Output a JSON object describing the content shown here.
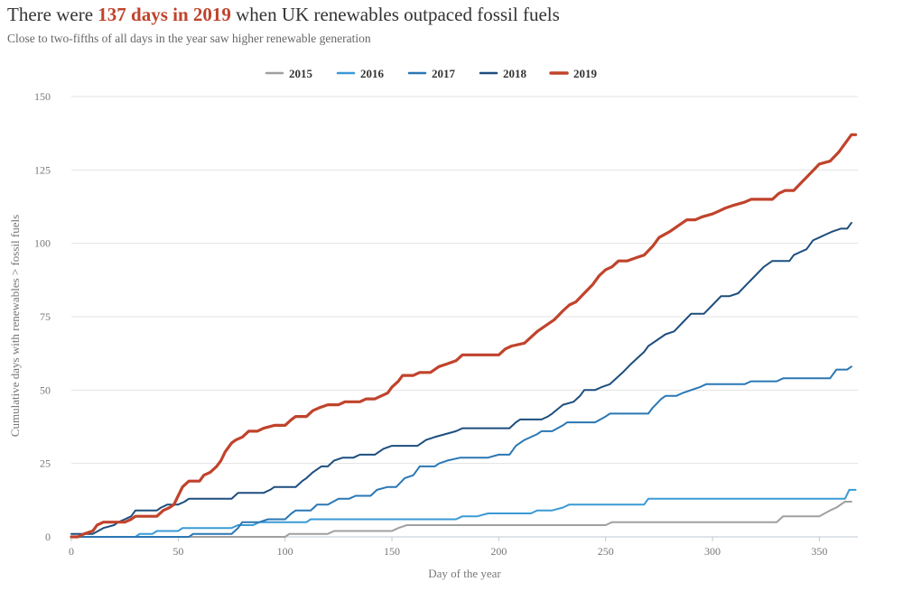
{
  "header": {
    "title_prefix": "There were ",
    "title_highlight": "137 days in 2019",
    "title_suffix": " when UK renewables outpaced fossil fuels",
    "subtitle": "Close to two-fifths of all days in the year saw higher renewable generation"
  },
  "chart_data": {
    "type": "line",
    "title": "There were 137 days in 2019 when UK renewables outpaced fossil fuels",
    "subtitle": "Close to two-fifths of all days in the year saw higher renewable generation",
    "xlabel": "Day of the year",
    "ylabel": "Cumulative days with renewables > fossil fuels",
    "xlim": [
      0,
      368
    ],
    "ylim": [
      0,
      150
    ],
    "xticks": [
      0,
      50,
      100,
      150,
      200,
      250,
      300,
      350
    ],
    "yticks": [
      0,
      25,
      50,
      75,
      100,
      125,
      150
    ],
    "grid": "horizontal",
    "legend_position": "top",
    "series": [
      {
        "name": "2015",
        "color": "#a0a0a0",
        "points": [
          [
            0,
            0
          ],
          [
            100,
            0
          ],
          [
            102,
            1
          ],
          [
            120,
            1
          ],
          [
            123,
            2
          ],
          [
            150,
            2
          ],
          [
            153,
            3
          ],
          [
            157,
            4
          ],
          [
            200,
            4
          ],
          [
            250,
            4
          ],
          [
            253,
            5
          ],
          [
            300,
            5
          ],
          [
            330,
            5
          ],
          [
            333,
            7
          ],
          [
            350,
            7
          ],
          [
            355,
            9
          ],
          [
            358,
            10
          ],
          [
            362,
            12
          ],
          [
            365,
            12
          ]
        ]
      },
      {
        "name": "2016",
        "color": "#3a9ad5",
        "points": [
          [
            0,
            0
          ],
          [
            30,
            0
          ],
          [
            32,
            1
          ],
          [
            38,
            1
          ],
          [
            40,
            2
          ],
          [
            50,
            2
          ],
          [
            52,
            3
          ],
          [
            75,
            3
          ],
          [
            78,
            4
          ],
          [
            85,
            4
          ],
          [
            88,
            5
          ],
          [
            110,
            5
          ],
          [
            112,
            6
          ],
          [
            180,
            6
          ],
          [
            183,
            7
          ],
          [
            190,
            7
          ],
          [
            195,
            8
          ],
          [
            215,
            8
          ],
          [
            218,
            9
          ],
          [
            225,
            9
          ],
          [
            230,
            10
          ],
          [
            233,
            11
          ],
          [
            268,
            11
          ],
          [
            270,
            13
          ],
          [
            362,
            13
          ],
          [
            364,
            16
          ],
          [
            367,
            16
          ]
        ]
      },
      {
        "name": "2017",
        "color": "#2a77b4",
        "points": [
          [
            0,
            0
          ],
          [
            30,
            0
          ],
          [
            35,
            0
          ],
          [
            45,
            0
          ],
          [
            55,
            0
          ],
          [
            57,
            1
          ],
          [
            75,
            1
          ],
          [
            78,
            3
          ],
          [
            80,
            5
          ],
          [
            88,
            5
          ],
          [
            92,
            6
          ],
          [
            100,
            6
          ],
          [
            103,
            8
          ],
          [
            105,
            9
          ],
          [
            112,
            9
          ],
          [
            115,
            11
          ],
          [
            120,
            11
          ],
          [
            125,
            13
          ],
          [
            130,
            13
          ],
          [
            133,
            14
          ],
          [
            140,
            14
          ],
          [
            143,
            16
          ],
          [
            148,
            17
          ],
          [
            152,
            17
          ],
          [
            156,
            20
          ],
          [
            160,
            21
          ],
          [
            163,
            24
          ],
          [
            170,
            24
          ],
          [
            172,
            25
          ],
          [
            176,
            26
          ],
          [
            182,
            27
          ],
          [
            195,
            27
          ],
          [
            200,
            28
          ],
          [
            205,
            28
          ],
          [
            208,
            31
          ],
          [
            212,
            33
          ],
          [
            215,
            34
          ],
          [
            218,
            35
          ],
          [
            220,
            36
          ],
          [
            225,
            36
          ],
          [
            230,
            38
          ],
          [
            232,
            39
          ],
          [
            245,
            39
          ],
          [
            250,
            41
          ],
          [
            252,
            42
          ],
          [
            270,
            42
          ],
          [
            272,
            44
          ],
          [
            276,
            47
          ],
          [
            278,
            48
          ],
          [
            283,
            48
          ],
          [
            286,
            49
          ],
          [
            290,
            50
          ],
          [
            294,
            51
          ],
          [
            297,
            52
          ],
          [
            315,
            52
          ],
          [
            318,
            53
          ],
          [
            330,
            53
          ],
          [
            333,
            54
          ],
          [
            355,
            54
          ],
          [
            358,
            57
          ],
          [
            363,
            57
          ],
          [
            365,
            58
          ]
        ]
      },
      {
        "name": "2018",
        "color": "#1d4e7e",
        "points": [
          [
            0,
            1
          ],
          [
            5,
            1
          ],
          [
            10,
            1
          ],
          [
            15,
            3
          ],
          [
            20,
            4
          ],
          [
            22,
            5
          ],
          [
            25,
            6
          ],
          [
            28,
            7
          ],
          [
            30,
            9
          ],
          [
            40,
            9
          ],
          [
            42,
            10
          ],
          [
            45,
            11
          ],
          [
            50,
            11
          ],
          [
            53,
            12
          ],
          [
            55,
            13
          ],
          [
            75,
            13
          ],
          [
            78,
            15
          ],
          [
            90,
            15
          ],
          [
            93,
            16
          ],
          [
            95,
            17
          ],
          [
            105,
            17
          ],
          [
            108,
            19
          ],
          [
            110,
            20
          ],
          [
            113,
            22
          ],
          [
            117,
            24
          ],
          [
            120,
            24
          ],
          [
            123,
            26
          ],
          [
            127,
            27
          ],
          [
            132,
            27
          ],
          [
            135,
            28
          ],
          [
            142,
            28
          ],
          [
            146,
            30
          ],
          [
            150,
            31
          ],
          [
            162,
            31
          ],
          [
            166,
            33
          ],
          [
            170,
            34
          ],
          [
            175,
            35
          ],
          [
            180,
            36
          ],
          [
            183,
            37
          ],
          [
            205,
            37
          ],
          [
            208,
            39
          ],
          [
            210,
            40
          ],
          [
            220,
            40
          ],
          [
            223,
            41
          ],
          [
            225,
            42
          ],
          [
            230,
            45
          ],
          [
            235,
            46
          ],
          [
            238,
            48
          ],
          [
            240,
            50
          ],
          [
            245,
            50
          ],
          [
            248,
            51
          ],
          [
            252,
            52
          ],
          [
            255,
            54
          ],
          [
            258,
            56
          ],
          [
            262,
            59
          ],
          [
            265,
            61
          ],
          [
            268,
            63
          ],
          [
            270,
            65
          ],
          [
            274,
            67
          ],
          [
            278,
            69
          ],
          [
            282,
            70
          ],
          [
            286,
            73
          ],
          [
            290,
            76
          ],
          [
            296,
            76
          ],
          [
            300,
            79
          ],
          [
            304,
            82
          ],
          [
            308,
            82
          ],
          [
            312,
            83
          ],
          [
            316,
            86
          ],
          [
            320,
            89
          ],
          [
            324,
            92
          ],
          [
            328,
            94
          ],
          [
            332,
            94
          ],
          [
            336,
            94
          ],
          [
            338,
            96
          ],
          [
            341,
            97
          ],
          [
            344,
            98
          ],
          [
            347,
            101
          ],
          [
            350,
            102
          ],
          [
            353,
            103
          ],
          [
            356,
            104
          ],
          [
            360,
            105
          ],
          [
            363,
            105
          ],
          [
            365,
            107
          ]
        ]
      },
      {
        "name": "2019",
        "color": "#c0432c",
        "points": [
          [
            0,
            0
          ],
          [
            3,
            0
          ],
          [
            6,
            1
          ],
          [
            10,
            2
          ],
          [
            12,
            4
          ],
          [
            15,
            5
          ],
          [
            25,
            5
          ],
          [
            28,
            6
          ],
          [
            30,
            7
          ],
          [
            40,
            7
          ],
          [
            43,
            9
          ],
          [
            46,
            10
          ],
          [
            48,
            11
          ],
          [
            50,
            14
          ],
          [
            52,
            17
          ],
          [
            55,
            19
          ],
          [
            60,
            19
          ],
          [
            62,
            21
          ],
          [
            65,
            22
          ],
          [
            68,
            24
          ],
          [
            70,
            26
          ],
          [
            72,
            29
          ],
          [
            75,
            32
          ],
          [
            77,
            33
          ],
          [
            80,
            34
          ],
          [
            83,
            36
          ],
          [
            87,
            36
          ],
          [
            90,
            37
          ],
          [
            95,
            38
          ],
          [
            100,
            38
          ],
          [
            103,
            40
          ],
          [
            105,
            41
          ],
          [
            110,
            41
          ],
          [
            113,
            43
          ],
          [
            116,
            44
          ],
          [
            120,
            45
          ],
          [
            125,
            45
          ],
          [
            128,
            46
          ],
          [
            135,
            46
          ],
          [
            138,
            47
          ],
          [
            142,
            47
          ],
          [
            145,
            48
          ],
          [
            148,
            49
          ],
          [
            150,
            51
          ],
          [
            153,
            53
          ],
          [
            155,
            55
          ],
          [
            160,
            55
          ],
          [
            163,
            56
          ],
          [
            168,
            56
          ],
          [
            172,
            58
          ],
          [
            176,
            59
          ],
          [
            180,
            60
          ],
          [
            183,
            62
          ],
          [
            200,
            62
          ],
          [
            203,
            64
          ],
          [
            206,
            65
          ],
          [
            212,
            66
          ],
          [
            215,
            68
          ],
          [
            218,
            70
          ],
          [
            222,
            72
          ],
          [
            226,
            74
          ],
          [
            230,
            77
          ],
          [
            233,
            79
          ],
          [
            236,
            80
          ],
          [
            240,
            83
          ],
          [
            244,
            86
          ],
          [
            247,
            89
          ],
          [
            250,
            91
          ],
          [
            253,
            92
          ],
          [
            256,
            94
          ],
          [
            260,
            94
          ],
          [
            264,
            95
          ],
          [
            268,
            96
          ],
          [
            272,
            99
          ],
          [
            275,
            102
          ],
          [
            280,
            104
          ],
          [
            284,
            106
          ],
          [
            288,
            108
          ],
          [
            292,
            108
          ],
          [
            295,
            109
          ],
          [
            300,
            110
          ],
          [
            303,
            111
          ],
          [
            306,
            112
          ],
          [
            310,
            113
          ],
          [
            315,
            114
          ],
          [
            318,
            115
          ],
          [
            328,
            115
          ],
          [
            331,
            117
          ],
          [
            334,
            118
          ],
          [
            338,
            118
          ],
          [
            342,
            121
          ],
          [
            346,
            124
          ],
          [
            350,
            127
          ],
          [
            355,
            128
          ],
          [
            359,
            131
          ],
          [
            362,
            134
          ],
          [
            365,
            137
          ],
          [
            367,
            137
          ]
        ]
      }
    ]
  }
}
